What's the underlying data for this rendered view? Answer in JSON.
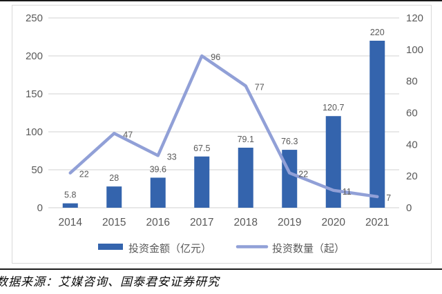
{
  "source_note": "数据来源：艾媒咨询、国泰君安证券研究",
  "colors": {
    "bar": "#3464ad",
    "line": "#91a0d7",
    "gridline": "#d9d9d9",
    "axis_text": "#595959",
    "data_label": "#595959",
    "frame_border": "#d9d9d9",
    "rule": "#1a1a1a"
  },
  "chart_data": {
    "type": "bar",
    "subtype": "combo-bar-line-dual-axis",
    "categories": [
      "2014",
      "2015",
      "2016",
      "2017",
      "2018",
      "2019",
      "2020",
      "2021"
    ],
    "series": [
      {
        "name": "投资金额（亿元）",
        "type": "bar",
        "axis": "left",
        "values": [
          5.8,
          28,
          39.6,
          67.5,
          79.1,
          76.3,
          120.7,
          220
        ],
        "labels": [
          "5.8",
          "28",
          "39.6",
          "67.5",
          "79.1",
          "76.3",
          "120.7",
          "220"
        ],
        "color": "#3464ad"
      },
      {
        "name": "投资数量（起）",
        "type": "line",
        "axis": "right",
        "values": [
          22,
          47,
          33,
          96,
          77,
          22,
          11,
          7
        ],
        "labels": [
          "22",
          "47",
          "33",
          "96",
          "77",
          "22",
          "11",
          "7"
        ],
        "color": "#91a0d7"
      }
    ],
    "left_axis": {
      "min": 0,
      "max": 250,
      "ticks": [
        0,
        50,
        100,
        150,
        200,
        250
      ]
    },
    "right_axis": {
      "min": 0,
      "max": 120,
      "ticks": [
        0,
        20,
        40,
        60,
        80,
        100,
        120
      ]
    },
    "grid": true,
    "legend_position": "bottom",
    "title": "",
    "xlabel": "",
    "ylabel": ""
  }
}
